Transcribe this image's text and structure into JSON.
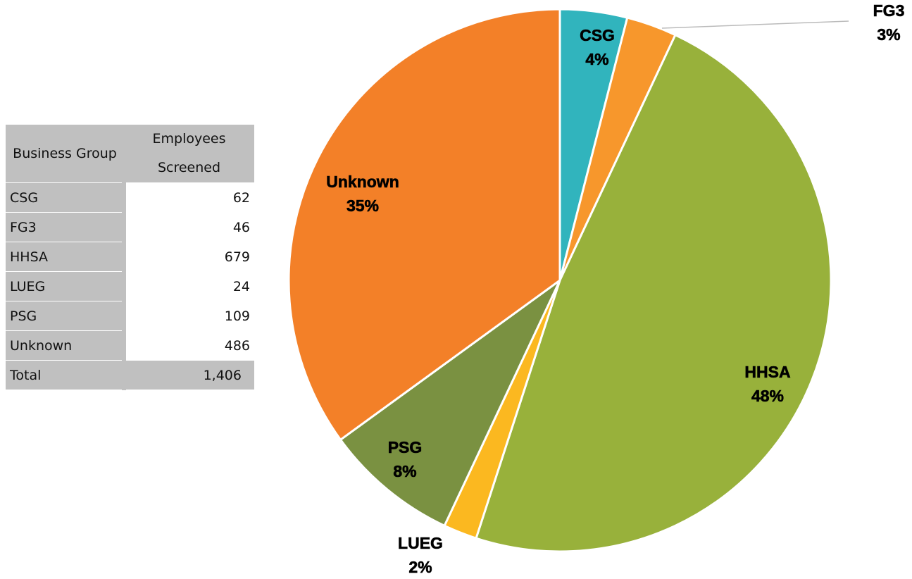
{
  "chart_data": {
    "type": "pie",
    "categories": [
      "CSG",
      "FG3",
      "HHSA",
      "LUEG",
      "PSG",
      "Unknown"
    ],
    "values": [
      4,
      3,
      48,
      2,
      8,
      35
    ],
    "value_labels": [
      "4%",
      "3%",
      "48%",
      "2%",
      "8%",
      "35%"
    ],
    "colors": [
      "#31b4bd",
      "#f7972c",
      "#98b13b",
      "#fbb820",
      "#7a9141",
      "#f38028"
    ]
  },
  "table": {
    "header": [
      "Business Group",
      "Employees Screened"
    ],
    "rows": [
      [
        "CSG",
        "62"
      ],
      [
        "FG3",
        "46"
      ],
      [
        "HHSA",
        "679"
      ],
      [
        "LUEG",
        "24"
      ],
      [
        "PSG",
        "109"
      ],
      [
        "Unknown",
        "486"
      ],
      [
        "Total",
        "1,406"
      ]
    ]
  }
}
